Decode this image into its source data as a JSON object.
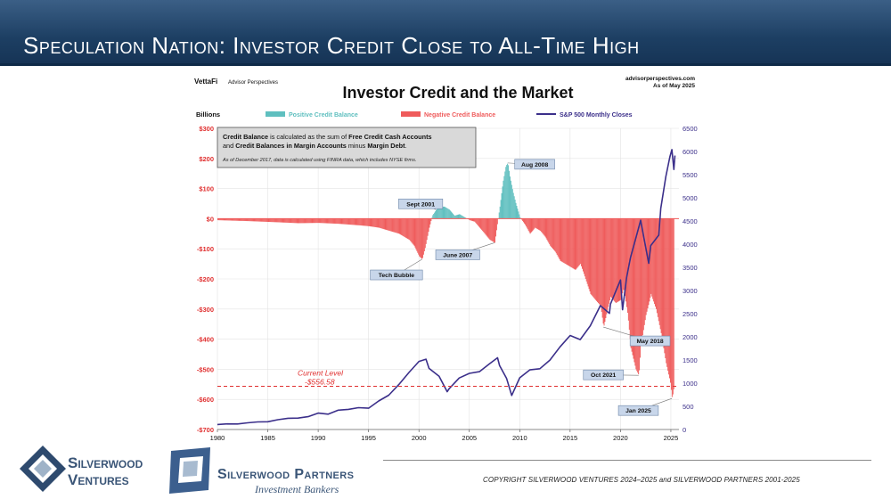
{
  "slide": {
    "title": "Speculation Nation: Investor Credit Close to All-Time High",
    "copyright": "COPYRIGHT SILVERWOOD VENTURES 2024–2025 and SILVERWOOD PARTNERS 2001-2025"
  },
  "logos": {
    "silverwood_ventures": {
      "line1": "Silverwood",
      "line2": "Ventures"
    },
    "silverwood_partners": {
      "name": "Silverwood Partners",
      "tagline": "Investment Bankers"
    }
  },
  "chart_header": {
    "brand": "VettaFi",
    "brand_sub": "Advisor Perspectives",
    "site": "advisorperspectives.com",
    "as_of": "As of May 2025",
    "title": "Investor Credit and the Market",
    "units_label": "Billions",
    "legend": [
      {
        "label": "Positive Credit Balance",
        "color": "#5fbfbf",
        "kind": "bar"
      },
      {
        "label": "Negative Credit Balance",
        "color": "#ef5b5b",
        "kind": "bar"
      },
      {
        "label": "S&P 500 Monthly Closes",
        "color": "#3b2f8a",
        "kind": "line"
      }
    ]
  },
  "note_box": {
    "line1_a": "Credit Balance",
    "line1_b": " is calculated as the sum of ",
    "line1_c": "Free Credit Cash Accounts",
    "line2_a": "and ",
    "line2_b": "Credit Balances in Margin Accounts",
    "line2_c": " minus ",
    "line2_d": "Margin Debt",
    "line2_e": ".",
    "line3": "As of December 2017, data is calculated using FINRA data, which includes NYSE firms."
  },
  "current_level": {
    "label": "Current Level",
    "value": "-$556.58"
  },
  "chart_data": {
    "type": "area",
    "title": "Investor Credit and the Market",
    "xlim": [
      1980,
      2025.8
    ],
    "x_ticks": [
      "1980",
      "1985",
      "1990",
      "1995",
      "2000",
      "2005",
      "2010",
      "2015",
      "2020",
      "2025"
    ],
    "y_left": {
      "label": "Billions",
      "ylim": [
        -700,
        300
      ],
      "ticks": [
        "$300",
        "$200",
        "$100",
        "$0",
        "-$100",
        "-$200",
        "-$300",
        "-$400",
        "-$500",
        "-$600",
        "-$700"
      ],
      "tick_values": [
        300,
        200,
        100,
        0,
        -100,
        -200,
        -300,
        -400,
        -500,
        -600,
        -700
      ],
      "tick_color": "#e03030"
    },
    "y_right": {
      "ylim": [
        0,
        6500
      ],
      "ticks": [
        "6500",
        "6000",
        "5500",
        "5000",
        "4500",
        "4000",
        "3500",
        "3000",
        "2500",
        "2000",
        "1500",
        "1000",
        "500",
        "0"
      ],
      "tick_values": [
        6500,
        6000,
        5500,
        5000,
        4500,
        4000,
        3500,
        3000,
        2500,
        2000,
        1500,
        1000,
        500,
        0
      ],
      "tick_color": "#3b2f8a"
    },
    "series": [
      {
        "name": "Credit Balance",
        "axis": "left",
        "points": [
          [
            1980,
            -5
          ],
          [
            1983,
            -8
          ],
          [
            1986,
            -12
          ],
          [
            1988,
            -15
          ],
          [
            1990,
            -14
          ],
          [
            1992,
            -17
          ],
          [
            1994,
            -22
          ],
          [
            1995,
            -25
          ],
          [
            1996,
            -30
          ],
          [
            1997,
            -40
          ],
          [
            1998,
            -50
          ],
          [
            1999,
            -70
          ],
          [
            1999.5,
            -90
          ],
          [
            2000,
            -125
          ],
          [
            2000.3,
            -135
          ],
          [
            2000.6,
            -95
          ],
          [
            2001,
            -30
          ],
          [
            2001.3,
            10
          ],
          [
            2001.7,
            30
          ],
          [
            2002,
            40
          ],
          [
            2002.5,
            40
          ],
          [
            2003,
            30
          ],
          [
            2003.5,
            10
          ],
          [
            2004,
            15
          ],
          [
            2004.5,
            5
          ],
          [
            2005,
            -5
          ],
          [
            2005.5,
            -10
          ],
          [
            2006,
            -30
          ],
          [
            2006.5,
            -50
          ],
          [
            2007,
            -70
          ],
          [
            2007.5,
            -80
          ],
          [
            2007.7,
            -30
          ],
          [
            2008,
            40
          ],
          [
            2008.3,
            120
          ],
          [
            2008.6,
            175
          ],
          [
            2008.8,
            185
          ],
          [
            2009,
            140
          ],
          [
            2009.3,
            90
          ],
          [
            2009.6,
            50
          ],
          [
            2010,
            5
          ],
          [
            2010.5,
            -20
          ],
          [
            2011,
            -50
          ],
          [
            2011.5,
            -30
          ],
          [
            2012,
            -40
          ],
          [
            2012.5,
            -60
          ],
          [
            2013,
            -90
          ],
          [
            2013.5,
            -110
          ],
          [
            2014,
            -140
          ],
          [
            2014.5,
            -150
          ],
          [
            2015,
            -160
          ],
          [
            2015.5,
            -170
          ],
          [
            2016,
            -150
          ],
          [
            2016.5,
            -200
          ],
          [
            2017,
            -250
          ],
          [
            2017.5,
            -270
          ],
          [
            2018,
            -290
          ],
          [
            2018.3,
            -360
          ],
          [
            2018.7,
            -300
          ],
          [
            2019,
            -260
          ],
          [
            2019.5,
            -280
          ],
          [
            2020,
            -270
          ],
          [
            2020.3,
            -230
          ],
          [
            2020.7,
            -320
          ],
          [
            2021,
            -430
          ],
          [
            2021.5,
            -500
          ],
          [
            2021.8,
            -520
          ],
          [
            2022,
            -420
          ],
          [
            2022.5,
            -320
          ],
          [
            2022.8,
            -280
          ],
          [
            2023,
            -250
          ],
          [
            2023.5,
            -300
          ],
          [
            2024,
            -380
          ],
          [
            2024.5,
            -480
          ],
          [
            2024.9,
            -540
          ],
          [
            2025.1,
            -597
          ],
          [
            2025.3,
            -556.58
          ]
        ]
      },
      {
        "name": "S&P 500 Monthly Closes",
        "axis": "right",
        "points": [
          [
            1980,
            107
          ],
          [
            1981,
            122
          ],
          [
            1982,
            119
          ],
          [
            1983,
            145
          ],
          [
            1984,
            164
          ],
          [
            1985,
            167
          ],
          [
            1986,
            211
          ],
          [
            1987,
            242
          ],
          [
            1988,
            247
          ],
          [
            1989,
            277
          ],
          [
            1990,
            353
          ],
          [
            1991,
            330
          ],
          [
            1992,
            417
          ],
          [
            1993,
            435
          ],
          [
            1994,
            472
          ],
          [
            1995,
            459
          ],
          [
            1996,
            615
          ],
          [
            1997,
            740
          ],
          [
            1998,
            970
          ],
          [
            1999,
            1229
          ],
          [
            2000,
            1469
          ],
          [
            2000.7,
            1517
          ],
          [
            2001,
            1320
          ],
          [
            2002,
            1148
          ],
          [
            2002.8,
            815
          ],
          [
            2003,
            880
          ],
          [
            2004,
            1111
          ],
          [
            2005,
            1212
          ],
          [
            2006,
            1248
          ],
          [
            2007,
            1418
          ],
          [
            2007.8,
            1549
          ],
          [
            2008,
            1378
          ],
          [
            2008.7,
            1100
          ],
          [
            2009.2,
            735
          ],
          [
            2010,
            1115
          ],
          [
            2011,
            1286
          ],
          [
            2012,
            1312
          ],
          [
            2013,
            1498
          ],
          [
            2014,
            1782
          ],
          [
            2015,
            2028
          ],
          [
            2016,
            1940
          ],
          [
            2017,
            2238
          ],
          [
            2018,
            2674
          ],
          [
            2018.9,
            2506
          ],
          [
            2019,
            2704
          ],
          [
            2020,
            3226
          ],
          [
            2020.2,
            2585
          ],
          [
            2020.6,
            3271
          ],
          [
            2021,
            3714
          ],
          [
            2022,
            4516
          ],
          [
            2022.8,
            3586
          ],
          [
            2023,
            3970
          ],
          [
            2023.8,
            4194
          ],
          [
            2024,
            4770
          ],
          [
            2024.5,
            5460
          ],
          [
            2024.9,
            5882
          ],
          [
            2025.1,
            6040
          ],
          [
            2025.3,
            5612
          ],
          [
            2025.4,
            5911
          ]
        ]
      }
    ],
    "annotations": [
      {
        "label": "Sept 2001",
        "x": 2001.7,
        "y": 30
      },
      {
        "label": "Tech Bubble",
        "x": 2000.3,
        "y": -135
      },
      {
        "label": "June 2007",
        "x": 2007.5,
        "y": -80
      },
      {
        "label": "Aug 2008",
        "x": 2008.8,
        "y": 185
      },
      {
        "label": "May 2018",
        "x": 2018.3,
        "y": -360
      },
      {
        "label": "Oct 2021",
        "x": 2021.8,
        "y": -520
      },
      {
        "label": "Jan 2025",
        "x": 2025.1,
        "y": -597
      }
    ],
    "reference_line": {
      "y": -556.58,
      "label": "Current Level",
      "value_label": "-$556.58",
      "color": "#e03030"
    },
    "grid": true,
    "legend_position": "top"
  }
}
